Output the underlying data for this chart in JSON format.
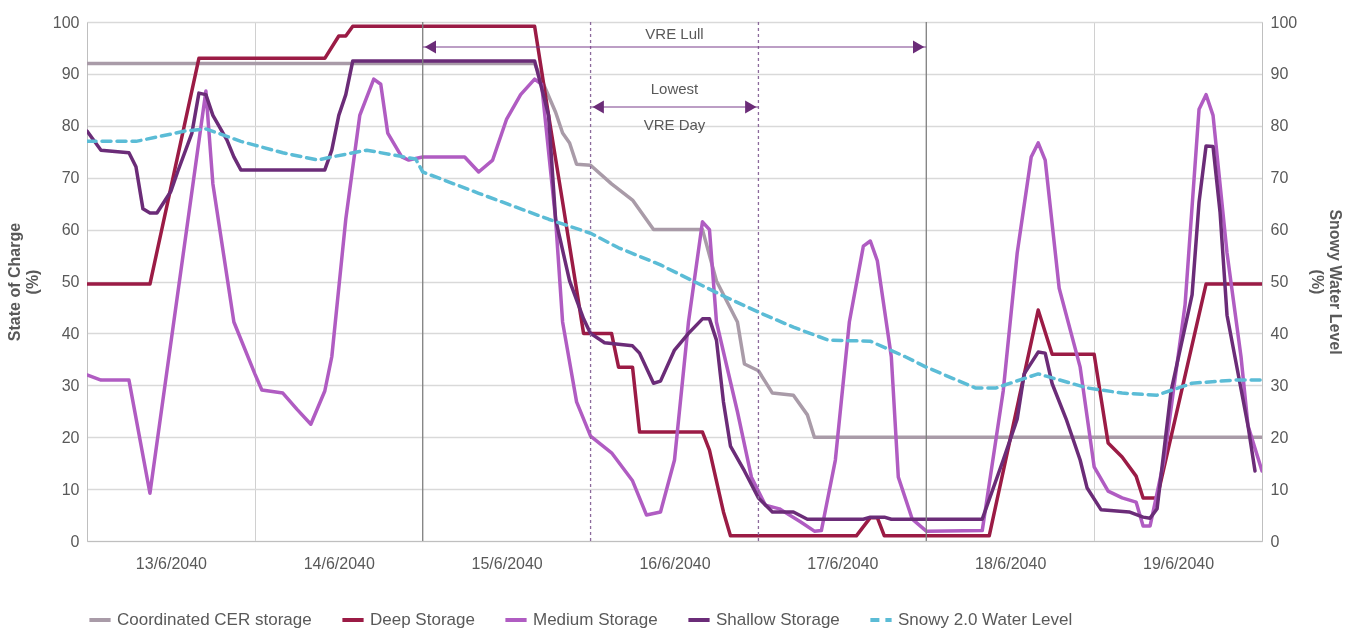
{
  "chart_data": {
    "type": "line",
    "ylabel": "State of Charge\n(%)",
    "y2label": "Snowy Water Level\n(%)",
    "ylim": [
      0,
      100
    ],
    "yticks": [
      0,
      10,
      20,
      30,
      40,
      50,
      60,
      70,
      80,
      90,
      100
    ],
    "y2lim": [
      0,
      100
    ],
    "y2ticks": [
      0,
      10,
      20,
      30,
      40,
      50,
      60,
      70,
      80,
      90,
      100
    ],
    "xlim": [
      "2040-06-13T00:00",
      "2040-06-20T00:00"
    ],
    "xticks": [
      {
        "value": "2040-06-13T00:00",
        "label": null
      },
      {
        "value": "2040-06-13T12:00",
        "label": "13/6/2040"
      },
      {
        "value": "2040-06-14T00:00",
        "label": null
      },
      {
        "value": "2040-06-14T12:00",
        "label": "14/6/2040"
      },
      {
        "value": "2040-06-15T12:00",
        "label": "15/6/2040"
      },
      {
        "value": "2040-06-16T12:00",
        "label": "16/6/2040"
      },
      {
        "value": "2040-06-17T12:00",
        "label": "17/6/2040"
      },
      {
        "value": "2040-06-18T12:00",
        "label": "18/6/2040"
      },
      {
        "value": "2040-06-19T00:00",
        "label": null
      },
      {
        "value": "2040-06-19T12:00",
        "label": "19/6/2040"
      },
      {
        "value": "2040-06-20T00:00",
        "label": null
      }
    ],
    "grid": true,
    "legend": "bottom",
    "ref_lines": [
      {
        "axis": "x",
        "value": "2040-06-15T00:00",
        "label": null,
        "color": "#7f7f7f",
        "line_style": "solid"
      },
      {
        "axis": "x",
        "value": "2040-06-18T00:00",
        "label": null,
        "color": "#7f7f7f",
        "line_style": "solid"
      },
      {
        "axis": "x",
        "value": "2040-06-16T00:00",
        "label": null,
        "color": "#8c6a9c",
        "line_style": "dotted"
      },
      {
        "axis": "x",
        "value": "2040-06-17T00:00",
        "label": null,
        "color": "#8c6a9c",
        "line_style": "dotted"
      }
    ],
    "annotations": [
      "VRE Lull",
      "Lowest\nVRE Day"
    ],
    "series": [
      {
        "name": "Coordinated CER storage",
        "color": "#a99ba8",
        "line_style": "solid",
        "x": [
          "2040-06-13T00:00",
          "2040-06-15T00:00",
          "2040-06-15T16:00",
          "2040-06-15T19:00",
          "2040-06-15T20:00",
          "2040-06-15T21:00",
          "2040-06-15T22:00",
          "2040-06-16T00:00",
          "2040-06-16T03:00",
          "2040-06-16T06:00",
          "2040-06-16T09:00",
          "2040-06-16T16:00",
          "2040-06-16T18:00",
          "2040-06-16T21:00",
          "2040-06-16T22:00",
          "2040-06-17T00:00",
          "2040-06-17T02:00",
          "2040-06-17T05:00",
          "2040-06-17T07:00",
          "2040-06-17T08:00",
          "2040-06-20T00:00"
        ],
        "values": [
          92,
          92,
          92,
          82.6,
          78.6,
          76.7,
          72.6,
          72.4,
          68.8,
          65.7,
          60,
          60,
          50.1,
          42.2,
          34.1,
          32.8,
          28.5,
          28.1,
          24.3,
          20,
          20
        ]
      },
      {
        "name": "Deep Storage",
        "color": "#9b1b45",
        "line_style": "solid",
        "x": [
          "2040-06-13T00:00",
          "2040-06-13T09:00",
          "2040-06-13T16:00",
          "2040-06-14T10:00",
          "2040-06-14T12:00",
          "2040-06-14T13:00",
          "2040-06-14T14:00",
          "2040-06-15T16:00",
          "2040-06-15T18:00",
          "2040-06-15T20:00",
          "2040-06-15T23:00",
          "2040-06-16T03:00",
          "2040-06-16T04:00",
          "2040-06-16T06:00",
          "2040-06-16T07:00",
          "2040-06-16T16:00",
          "2040-06-16T17:00",
          "2040-06-16T19:00",
          "2040-06-16T20:00",
          "2040-06-17T14:00",
          "2040-06-17T16:00",
          "2040-06-17T17:00",
          "2040-06-17T18:00",
          "2040-06-18T09:00",
          "2040-06-18T16:00",
          "2040-06-18T18:00",
          "2040-06-19T00:00",
          "2040-06-19T02:00",
          "2040-06-19T04:00",
          "2040-06-19T06:00",
          "2040-06-19T07:00",
          "2040-06-19T09:00",
          "2040-06-19T16:00",
          "2040-06-20T00:00"
        ],
        "values": [
          49.5,
          49.5,
          93,
          93,
          97.3,
          97.3,
          99.2,
          99.2,
          82,
          65.3,
          40,
          40,
          33.5,
          33.5,
          21,
          21,
          17.5,
          5.6,
          1,
          1,
          4.5,
          4.5,
          1,
          1,
          44.5,
          36,
          36,
          18.9,
          16.2,
          12.5,
          8.3,
          8.3,
          49.5,
          49.5
        ]
      },
      {
        "name": "Medium Storage",
        "color": "#b05cc2",
        "line_style": "solid",
        "x": [
          "2040-06-13T00:00",
          "2040-06-13T02:00",
          "2040-06-13T06:00",
          "2040-06-13T09:00",
          "2040-06-13T17:00",
          "2040-06-13T18:00",
          "2040-06-13T21:00",
          "2040-06-14T00:00",
          "2040-06-14T01:00",
          "2040-06-14T04:00",
          "2040-06-14T06:00",
          "2040-06-14T08:00",
          "2040-06-14T10:00",
          "2040-06-14T11:00",
          "2040-06-14T13:00",
          "2040-06-14T15:00",
          "2040-06-14T17:00",
          "2040-06-14T18:00",
          "2040-06-14T19:00",
          "2040-06-14T21:00",
          "2040-06-14T22:00",
          "2040-06-15T00:00",
          "2040-06-15T06:00",
          "2040-06-15T08:00",
          "2040-06-15T10:00",
          "2040-06-15T12:00",
          "2040-06-15T14:00",
          "2040-06-15T16:00",
          "2040-06-15T17:00",
          "2040-06-15T19:00",
          "2040-06-15T20:00",
          "2040-06-15T22:00",
          "2040-06-16T00:00",
          "2040-06-16T03:00",
          "2040-06-16T06:00",
          "2040-06-16T08:00",
          "2040-06-16T10:00",
          "2040-06-16T12:00",
          "2040-06-16T14:00",
          "2040-06-16T16:00",
          "2040-06-16T17:00",
          "2040-06-16T18:00",
          "2040-06-16T21:00",
          "2040-06-16T23:00",
          "2040-06-17T01:00",
          "2040-06-17T03:00",
          "2040-06-17T06:00",
          "2040-06-17T08:00",
          "2040-06-17T09:00",
          "2040-06-17T11:00",
          "2040-06-17T13:00",
          "2040-06-17T15:00",
          "2040-06-17T16:00",
          "2040-06-17T17:00",
          "2040-06-17T19:00",
          "2040-06-17T20:00",
          "2040-06-17T22:00",
          "2040-06-18T00:00",
          "2040-06-18T08:00",
          "2040-06-18T11:00",
          "2040-06-18T13:00",
          "2040-06-18T15:00",
          "2040-06-18T16:00",
          "2040-06-18T17:00",
          "2040-06-18T19:00",
          "2040-06-18T22:00",
          "2040-06-19T00:00",
          "2040-06-19T02:00",
          "2040-06-19T04:00",
          "2040-06-19T06:00",
          "2040-06-19T07:00",
          "2040-06-19T08:00",
          "2040-06-19T10:00",
          "2040-06-19T13:00",
          "2040-06-19T15:00",
          "2040-06-19T16:00",
          "2040-06-19T17:00",
          "2040-06-19T19:00",
          "2040-06-19T21:00",
          "2040-06-19T22:00",
          "2040-06-20T00:00"
        ],
        "values": [
          32,
          31,
          31,
          9.2,
          86.7,
          68.8,
          42.2,
          32.2,
          29.1,
          28.5,
          25.4,
          22.5,
          28.9,
          35.5,
          62,
          82,
          89,
          88,
          78.6,
          74,
          73.4,
          74,
          74,
          71.1,
          73.4,
          81.3,
          86,
          89,
          88,
          62,
          42.2,
          26.8,
          20.2,
          17,
          11.6,
          5,
          5.6,
          15.6,
          42.2,
          61.5,
          60,
          42.2,
          24.9,
          12.3,
          6.9,
          6.2,
          3.7,
          1.9,
          2,
          15.6,
          42.2,
          56.8,
          57.8,
          54,
          35.5,
          12.3,
          4.2,
          1.9,
          2,
          28.9,
          55.5,
          74,
          76.7,
          73.4,
          48.7,
          33.5,
          14.3,
          9.6,
          8.3,
          7.5,
          2.9,
          2.9,
          15.6,
          45.5,
          83.2,
          86,
          82,
          55.5,
          35.5,
          22.2,
          13.5
        ]
      },
      {
        "name": "Shallow Storage",
        "color": "#6b2c78",
        "line_style": "solid",
        "x": [
          "2040-06-13T00:00",
          "2040-06-13T02:00",
          "2040-06-13T06:00",
          "2040-06-13T07:00",
          "2040-06-13T08:00",
          "2040-06-13T09:00",
          "2040-06-13T10:00",
          "2040-06-13T12:00",
          "2040-06-13T13:00",
          "2040-06-13T15:00",
          "2040-06-13T16:00",
          "2040-06-13T17:00",
          "2040-06-13T18:00",
          "2040-06-13T20:00",
          "2040-06-13T21:00",
          "2040-06-13T22:00",
          "2040-06-14T10:00",
          "2040-06-14T11:00",
          "2040-06-14T12:00",
          "2040-06-14T13:00",
          "2040-06-14T14:00",
          "2040-06-15T16:00",
          "2040-06-15T18:00",
          "2040-06-15T19:00",
          "2040-06-15T21:00",
          "2040-06-15T23:00",
          "2040-06-16T00:00",
          "2040-06-16T02:00",
          "2040-06-16T06:00",
          "2040-06-16T07:00",
          "2040-06-16T09:00",
          "2040-06-16T10:00",
          "2040-06-16T12:00",
          "2040-06-16T14:00",
          "2040-06-16T16:00",
          "2040-06-16T17:00",
          "2040-06-16T18:00",
          "2040-06-16T19:00",
          "2040-06-16T20:00",
          "2040-06-16T22:00",
          "2040-06-17T00:00",
          "2040-06-17T02:00",
          "2040-06-17T05:00",
          "2040-06-17T07:00",
          "2040-06-17T15:00",
          "2040-06-17T16:00",
          "2040-06-17T18:00",
          "2040-06-17T19:00",
          "2040-06-18T08:00",
          "2040-06-18T11:00",
          "2040-06-18T13:00",
          "2040-06-18T14:00",
          "2040-06-18T16:00",
          "2040-06-18T17:00",
          "2040-06-18T18:00",
          "2040-06-18T20:00",
          "2040-06-18T22:00",
          "2040-06-18T23:00",
          "2040-06-19T01:00",
          "2040-06-19T05:00",
          "2040-06-19T07:00",
          "2040-06-19T08:00",
          "2040-06-19T09:00",
          "2040-06-19T11:00",
          "2040-06-19T14:00",
          "2040-06-19T15:00",
          "2040-06-19T16:00",
          "2040-06-19T17:00",
          "2040-06-19T18:00",
          "2040-06-19T19:00",
          "2040-06-19T22:00",
          "2040-06-19T23:00"
        ],
        "values": [
          79,
          75.3,
          74.8,
          72.1,
          64,
          63.2,
          63.2,
          67.4,
          71.3,
          78.6,
          86.3,
          86,
          82,
          77.3,
          74,
          71.5,
          71.5,
          75.3,
          82,
          86,
          92.5,
          92.5,
          82,
          62,
          50.1,
          42.8,
          40,
          38.2,
          37.6,
          36.2,
          30.4,
          30.8,
          36.8,
          40,
          42.8,
          42.8,
          38.7,
          26.8,
          18.3,
          13.5,
          8.3,
          5.6,
          5.6,
          4.2,
          4.2,
          4.6,
          4.6,
          4.2,
          4.2,
          15.6,
          23.5,
          32.2,
          36.4,
          36.2,
          30.3,
          23.5,
          15.6,
          10.2,
          6,
          5.6,
          4.6,
          4.4,
          6.2,
          28.9,
          47.4,
          65.3,
          76.1,
          76,
          63.4,
          43.5,
          22.2,
          13.5
        ]
      },
      {
        "name": "Snowy 2.0 Water Level",
        "color": "#5bbcd6",
        "line_style": "dashed",
        "axis": "y2",
        "x": [
          "2040-06-13T00:00",
          "2040-06-13T07:00",
          "2040-06-13T12:00",
          "2040-06-13T14:00",
          "2040-06-13T17:00",
          "2040-06-13T22:00",
          "2040-06-14T04:00",
          "2040-06-14T09:00",
          "2040-06-14T11:00",
          "2040-06-14T16:00",
          "2040-06-14T23:00",
          "2040-06-15T00:00",
          "2040-06-15T08:00",
          "2040-06-15T18:00",
          "2040-06-16T00:00",
          "2040-06-16T04:00",
          "2040-06-16T10:00",
          "2040-06-16T19:00",
          "2040-06-17T00:00",
          "2040-06-17T05:00",
          "2040-06-17T10:00",
          "2040-06-17T16:00",
          "2040-06-17T21:00",
          "2040-06-18T00:00",
          "2040-06-18T07:00",
          "2040-06-18T10:00",
          "2040-06-18T16:00",
          "2040-06-18T23:00",
          "2040-06-19T04:00",
          "2040-06-19T09:00",
          "2040-06-19T14:00",
          "2040-06-19T20:00",
          "2040-06-20T00:00"
        ],
        "values": [
          77,
          77,
          78.4,
          79,
          79.4,
          77,
          74.8,
          73.4,
          74,
          75.3,
          73.6,
          71.1,
          67,
          62,
          59.3,
          56.5,
          53.2,
          47.2,
          44.1,
          41.2,
          38.7,
          38.5,
          35.5,
          33.5,
          29.5,
          29.5,
          32.2,
          29.5,
          28.5,
          28.1,
          30.4,
          31,
          31
        ]
      }
    ]
  }
}
